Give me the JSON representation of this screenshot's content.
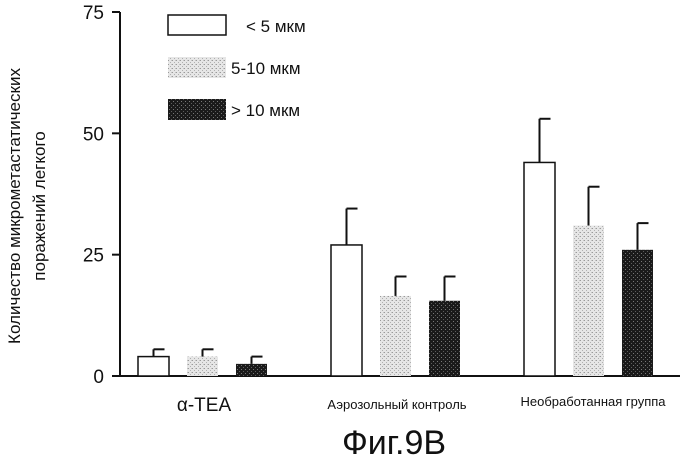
{
  "chart_data": {
    "type": "bar",
    "ylabel_lines": [
      "Количество микрометастатических",
      "поражений легкого"
    ],
    "ylim": [
      0,
      75
    ],
    "yticks": [
      0,
      25,
      50,
      75
    ],
    "categories": [
      "α-TEA",
      "Аэрозольный контроль",
      "Необработанная группа"
    ],
    "series": [
      {
        "name": "< 5 мкм",
        "fill": "#ffffff",
        "pattern": "none",
        "values": [
          4,
          27,
          44
        ],
        "errors": [
          1.5,
          7.5,
          9
        ]
      },
      {
        "name": "5-10 мкм",
        "fill": "#d8d8d8",
        "pattern": "light",
        "values": [
          4,
          16.5,
          31
        ],
        "errors": [
          1.5,
          4,
          8
        ]
      },
      {
        "name": "> 10 мкм",
        "fill": "#1e1e1e",
        "pattern": "dark",
        "values": [
          2.5,
          15.5,
          26
        ],
        "errors": [
          1.5,
          5,
          5.5
        ]
      }
    ],
    "legend_position": "top-left",
    "grid": false
  },
  "caption": "Фиг.9B"
}
